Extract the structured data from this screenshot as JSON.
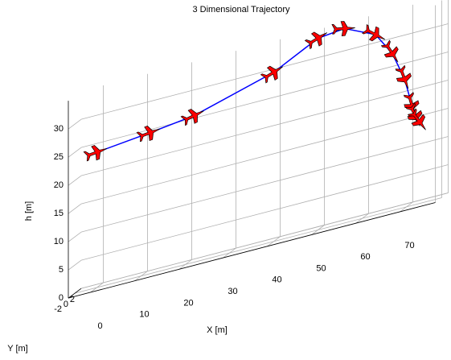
{
  "chart_data": {
    "type": "line3d",
    "title": "3 Dimensional Trajectory",
    "xlabel": "X [m]",
    "ylabel": "Y [m]",
    "zlabel": "h [m]",
    "xlim": [
      -5,
      78
    ],
    "ylim": [
      -2,
      2
    ],
    "zlim": [
      0,
      35
    ],
    "xticks": [
      0,
      10,
      20,
      30,
      40,
      50,
      60,
      70
    ],
    "yticks": [
      -2,
      0,
      2
    ],
    "zticks": [
      0,
      5,
      10,
      15,
      20,
      25,
      30
    ],
    "grid": true,
    "series": [
      {
        "color": "#0000ff",
        "marker_color": "#ff0000",
        "x": [
          0,
          12,
          22,
          40,
          50,
          56,
          63,
          67,
          70,
          72,
          73,
          74
        ],
        "y": [
          0,
          0,
          0,
          0,
          0,
          0,
          0,
          -0.3,
          -0.6,
          -1,
          -1.3,
          -1.5
        ],
        "z": [
          24,
          25,
          26,
          30,
          34,
          34.5,
          32,
          28,
          23,
          18,
          16,
          15
        ]
      }
    ]
  }
}
